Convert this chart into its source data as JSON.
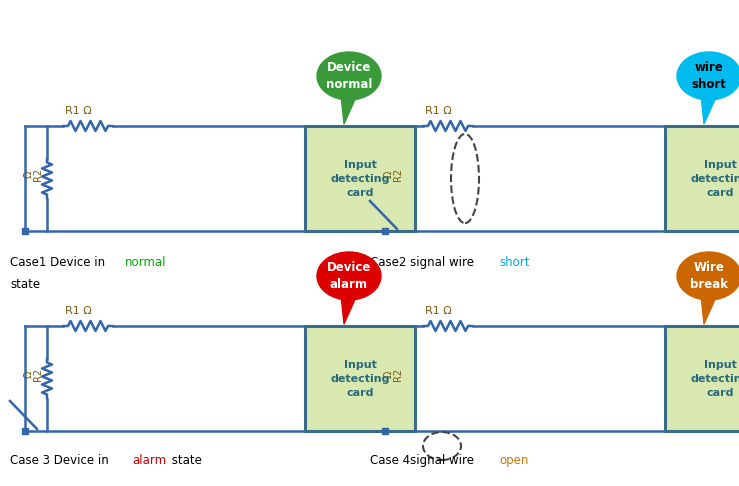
{
  "bg_color": "#ffffff",
  "card_color": "#d8e8b0",
  "card_border_color": "#3a6a8a",
  "wire_color": "#3366aa",
  "r1_label_color": "#7a5a10",
  "r2_label_color": "#7a5a10",
  "card_text_color": "#2a6a7a",
  "cases": [
    {
      "label_parts": [
        [
          "Case1 Device in ",
          "#000000"
        ],
        [
          "normal",
          "#00aa00"
        ]
      ],
      "label2": "state",
      "bubble_text": "Device\nnormal",
      "bubble_color": "#3a9a3a",
      "bubble_text_color": "#ffffff",
      "has_short_wire": false,
      "has_open_wire": false,
      "switch_open": false
    },
    {
      "label_parts": [
        [
          "Case2 signal wire ",
          "#000000"
        ],
        [
          "short",
          "#00aadd"
        ]
      ],
      "label2": "",
      "bubble_text": "wire\nshort",
      "bubble_color": "#00bbee",
      "bubble_text_color": "#000000",
      "has_short_wire": true,
      "has_open_wire": false,
      "switch_open": true
    },
    {
      "label_parts": [
        [
          "Case 3 Device in ",
          "#000000"
        ],
        [
          "alarm",
          "#cc0000"
        ],
        [
          " state",
          "#000000"
        ]
      ],
      "label2": "",
      "bubble_text": "Device\nalarm",
      "bubble_color": "#dd0000",
      "bubble_text_color": "#ffffff",
      "has_short_wire": false,
      "has_open_wire": false,
      "switch_open": true
    },
    {
      "label_parts": [
        [
          "Case 4signal wire ",
          "#000000"
        ],
        [
          "open",
          "#cc7700"
        ]
      ],
      "label2": "",
      "bubble_text": "Wire\nbreak",
      "bubble_color": "#cc6600",
      "bubble_text_color": "#ffffff",
      "has_short_wire": false,
      "has_open_wire": true,
      "switch_open": false
    }
  ]
}
